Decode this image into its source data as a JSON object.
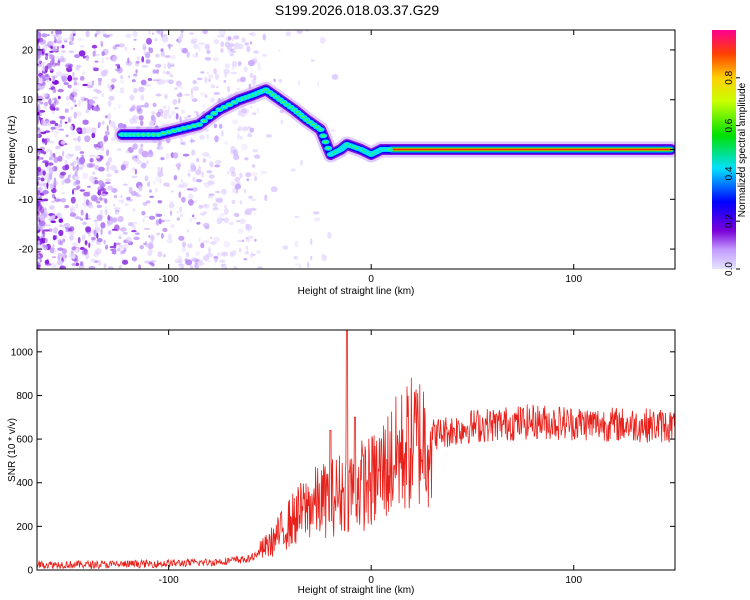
{
  "title": "S199.2026.018.03.37.G29",
  "chart_data": [
    {
      "type": "heatmap",
      "name": "spectrogram",
      "xlabel": "Height of straight line (km)",
      "ylabel": "Frequency (Hz)",
      "xlim": [
        -165,
        150
      ],
      "ylim": [
        -24,
        24
      ],
      "xticks": [
        -100,
        0,
        100
      ],
      "yticks": [
        -20,
        -10,
        0,
        10,
        20
      ],
      "ridge": [
        {
          "x": -123,
          "y": 3
        },
        {
          "x": -115,
          "y": 3
        },
        {
          "x": -105,
          "y": 3
        },
        {
          "x": -95,
          "y": 4
        },
        {
          "x": -85,
          "y": 5
        },
        {
          "x": -75,
          "y": 8
        },
        {
          "x": -65,
          "y": 10
        },
        {
          "x": -58,
          "y": 11
        },
        {
          "x": -52,
          "y": 12
        },
        {
          "x": -45,
          "y": 10
        },
        {
          "x": -38,
          "y": 8
        },
        {
          "x": -32,
          "y": 6
        },
        {
          "x": -25,
          "y": 4
        },
        {
          "x": -20,
          "y": -1
        },
        {
          "x": -15,
          "y": 0
        },
        {
          "x": -12,
          "y": 1
        },
        {
          "x": -5,
          "y": 0
        },
        {
          "x": 0,
          "y": -1
        },
        {
          "x": 5,
          "y": 0
        },
        {
          "x": 10,
          "y": 0
        },
        {
          "x": 148,
          "y": 0
        }
      ],
      "colorbar": {
        "label": "Normalized spectral amplitude",
        "range": [
          0,
          1
        ],
        "ticks": [
          0.0,
          0.2,
          0.4,
          0.6,
          0.8
        ],
        "tick_labels": [
          "0.0",
          "0.2",
          "0.4",
          "0.6",
          "0.8"
        ]
      }
    },
    {
      "type": "line",
      "name": "snr",
      "xlabel": "Height of straight line (km)",
      "ylabel": "SNR (10 * v/v)",
      "xlim": [
        -165,
        150
      ],
      "ylim": [
        0,
        1100
      ],
      "xticks": [
        -100,
        0,
        100
      ],
      "yticks": [
        0,
        200,
        400,
        600,
        800,
        1000
      ],
      "color": "#e8201a",
      "envelope": [
        {
          "x": -165,
          "y": 25
        },
        {
          "x": -130,
          "y": 25
        },
        {
          "x": -100,
          "y": 30
        },
        {
          "x": -80,
          "y": 35
        },
        {
          "x": -60,
          "y": 50
        },
        {
          "x": -50,
          "y": 120
        },
        {
          "x": -40,
          "y": 220
        },
        {
          "x": -30,
          "y": 300
        },
        {
          "x": -20,
          "y": 330
        },
        {
          "x": -10,
          "y": 380
        },
        {
          "x": 0,
          "y": 400
        },
        {
          "x": 10,
          "y": 500
        },
        {
          "x": 20,
          "y": 580
        },
        {
          "x": 30,
          "y": 620
        },
        {
          "x": 50,
          "y": 660
        },
        {
          "x": 80,
          "y": 680
        },
        {
          "x": 110,
          "y": 670
        },
        {
          "x": 150,
          "y": 660
        }
      ],
      "spikes": [
        {
          "x": -12,
          "y": 1100
        },
        {
          "x": -20,
          "y": 640
        },
        {
          "x": -8,
          "y": 700
        }
      ]
    }
  ]
}
